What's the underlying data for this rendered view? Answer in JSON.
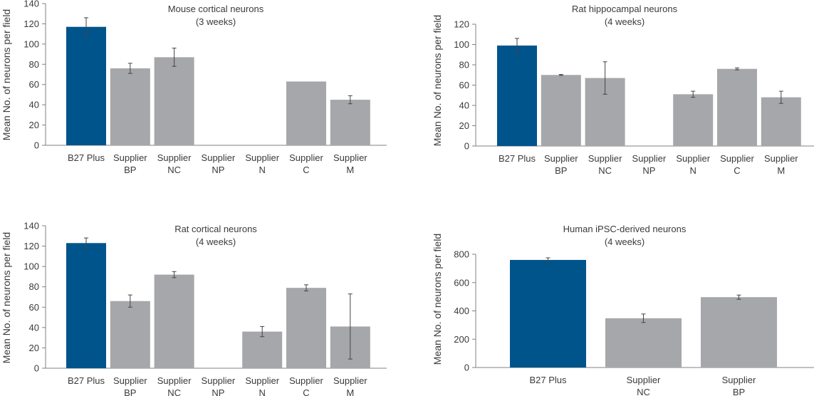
{
  "colors": {
    "highlight": "#00548c",
    "other": "#a6a7aa"
  },
  "chart_data": [
    {
      "type": "bar",
      "title": "Mouse cortical neurons",
      "subtitle": "(3 weeks)",
      "xlabel": "",
      "ylabel": "Mean No. of neurons per field",
      "ylim": [
        0,
        140
      ],
      "yticks": [
        0,
        20,
        40,
        60,
        80,
        100,
        120,
        140
      ],
      "grid": false,
      "categories": [
        [
          "B27 Plus"
        ],
        [
          "Supplier",
          "BP"
        ],
        [
          "Supplier",
          "NC"
        ],
        [
          "Supplier",
          "NP"
        ],
        [
          "Supplier",
          "N"
        ],
        [
          "Supplier",
          "C"
        ],
        [
          "Supplier",
          "M"
        ]
      ],
      "values": [
        117,
        76,
        87,
        0,
        0.5,
        63,
        45
      ],
      "errors": [
        9,
        5,
        9,
        0,
        0,
        0,
        4
      ],
      "highlight_index": 0
    },
    {
      "type": "bar",
      "title": "Rat hippocampal neurons",
      "subtitle": "(4 weeks)",
      "xlabel": "",
      "ylabel": "Mean No. of neurons per field",
      "ylim": [
        0,
        120
      ],
      "yticks": [
        0,
        20,
        40,
        60,
        80,
        100,
        120
      ],
      "grid": false,
      "categories": [
        [
          "B27 Plus"
        ],
        [
          "Supplier",
          "BP"
        ],
        [
          "Supplier",
          "NC"
        ],
        [
          "Supplier",
          "NP"
        ],
        [
          "Supplier",
          "N"
        ],
        [
          "Supplier",
          "C"
        ],
        [
          "Supplier",
          "M"
        ]
      ],
      "values": [
        99,
        70,
        67,
        0,
        51,
        76,
        48
      ],
      "errors": [
        7,
        0.5,
        16,
        0,
        3,
        1,
        6
      ],
      "highlight_index": 0
    },
    {
      "type": "bar",
      "title": "Rat cortical neurons",
      "subtitle": "(4 weeks)",
      "xlabel": "",
      "ylabel": "Mean No. of neurons per field",
      "ylim": [
        0,
        140
      ],
      "yticks": [
        0,
        20,
        40,
        60,
        80,
        100,
        120,
        140
      ],
      "grid": false,
      "categories": [
        [
          "B27 Plus"
        ],
        [
          "Supplier",
          "BP"
        ],
        [
          "Supplier",
          "NC"
        ],
        [
          "Supplier",
          "NP"
        ],
        [
          "Supplier",
          "N"
        ],
        [
          "Supplier",
          "C"
        ],
        [
          "Supplier",
          "M"
        ]
      ],
      "values": [
        123,
        66,
        92,
        0,
        36,
        79,
        41
      ],
      "errors": [
        5,
        6,
        3,
        0,
        5,
        3,
        32
      ],
      "highlight_index": 0
    },
    {
      "type": "bar",
      "title": "Human iPSC-derived neurons",
      "subtitle": "(4 weeks)",
      "xlabel": "",
      "ylabel": "Mean No. of neurons per field",
      "ylim": [
        0,
        800
      ],
      "yticks": [
        0,
        200,
        400,
        600,
        800
      ],
      "grid": false,
      "categories": [
        [
          "B27 Plus"
        ],
        [
          "Supplier",
          "NC"
        ],
        [
          "Supplier",
          "BP"
        ]
      ],
      "values": [
        760,
        348,
        497
      ],
      "errors": [
        15,
        30,
        15
      ],
      "highlight_index": 0
    }
  ]
}
